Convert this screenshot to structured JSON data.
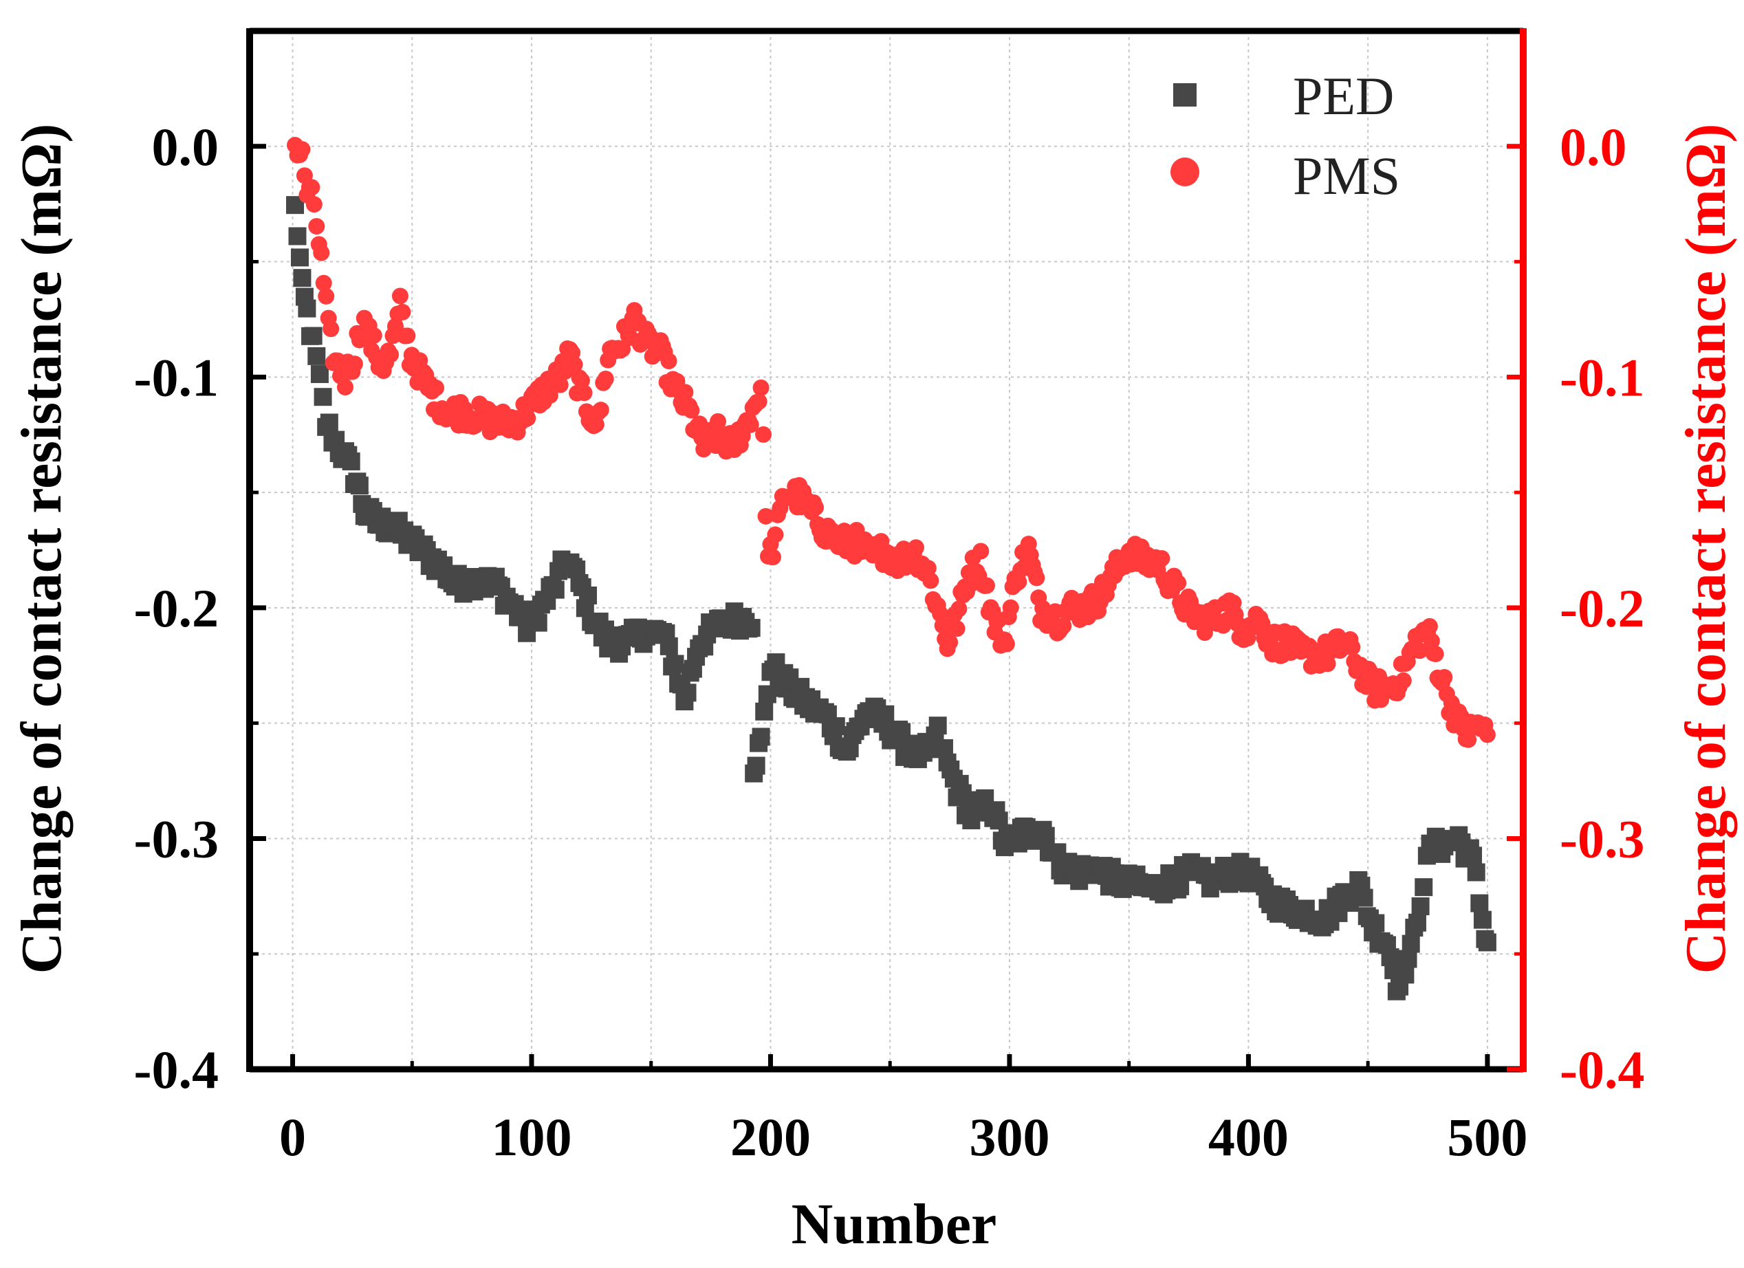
{
  "chart_data": {
    "type": "scatter",
    "title": "",
    "xlabel": "Number",
    "ylabel_left": "Change of contact resistance (mΩ)",
    "ylabel_right": "Change of contact resistance (mΩ)",
    "xlim": [
      -18,
      515
    ],
    "ylim": [
      -0.4,
      0.05
    ],
    "x_ticks": [
      0,
      100,
      200,
      300,
      400,
      500
    ],
    "y_ticks": [
      0.0,
      -0.1,
      -0.2,
      -0.3,
      -0.4
    ],
    "x_tick_labels": [
      "0",
      "100",
      "200",
      "300",
      "400",
      "500"
    ],
    "y_tick_labels": [
      "0.0",
      "-0.1",
      "-0.2",
      "-0.3",
      "-0.4"
    ],
    "grid": true,
    "legend_position": "top-right",
    "colors": {
      "PED": "#474747",
      "PMS": "#ff3b3b",
      "right_axis": "#ff0000",
      "left_axis": "#000000"
    },
    "series": [
      {
        "name": "PED",
        "marker": "square",
        "anchors": [
          [
            1,
            -0.027
          ],
          [
            2,
            -0.037
          ],
          [
            4,
            -0.062
          ],
          [
            6,
            -0.072
          ],
          [
            10,
            -0.093
          ],
          [
            14,
            -0.12
          ],
          [
            18,
            -0.128
          ],
          [
            22,
            -0.135
          ],
          [
            27,
            -0.145
          ],
          [
            30,
            -0.158
          ],
          [
            35,
            -0.163
          ],
          [
            42,
            -0.165
          ],
          [
            48,
            -0.17
          ],
          [
            55,
            -0.176
          ],
          [
            62,
            -0.182
          ],
          [
            68,
            -0.19
          ],
          [
            76,
            -0.188
          ],
          [
            85,
            -0.19
          ],
          [
            93,
            -0.2
          ],
          [
            98,
            -0.208
          ],
          [
            104,
            -0.2
          ],
          [
            110,
            -0.19
          ],
          [
            115,
            -0.178
          ],
          [
            120,
            -0.19
          ],
          [
            126,
            -0.205
          ],
          [
            132,
            -0.215
          ],
          [
            140,
            -0.215
          ],
          [
            148,
            -0.21
          ],
          [
            155,
            -0.212
          ],
          [
            160,
            -0.225
          ],
          [
            164,
            -0.24
          ],
          [
            170,
            -0.215
          ],
          [
            178,
            -0.208
          ],
          [
            186,
            -0.205
          ],
          [
            192,
            -0.205
          ],
          [
            193,
            -0.268
          ],
          [
            196,
            -0.258
          ],
          [
            200,
            -0.225
          ],
          [
            208,
            -0.235
          ],
          [
            216,
            -0.242
          ],
          [
            224,
            -0.248
          ],
          [
            232,
            -0.262
          ],
          [
            240,
            -0.245
          ],
          [
            248,
            -0.25
          ],
          [
            256,
            -0.26
          ],
          [
            264,
            -0.265
          ],
          [
            270,
            -0.255
          ],
          [
            274,
            -0.268
          ],
          [
            278,
            -0.278
          ],
          [
            284,
            -0.29
          ],
          [
            292,
            -0.285
          ],
          [
            298,
            -0.302
          ],
          [
            306,
            -0.298
          ],
          [
            314,
            -0.296
          ],
          [
            320,
            -0.31
          ],
          [
            328,
            -0.315
          ],
          [
            336,
            -0.312
          ],
          [
            344,
            -0.318
          ],
          [
            352,
            -0.32
          ],
          [
            360,
            -0.322
          ],
          [
            368,
            -0.318
          ],
          [
            376,
            -0.315
          ],
          [
            384,
            -0.318
          ],
          [
            392,
            -0.315
          ],
          [
            400,
            -0.315
          ],
          [
            408,
            -0.325
          ],
          [
            416,
            -0.33
          ],
          [
            424,
            -0.332
          ],
          [
            432,
            -0.335
          ],
          [
            440,
            -0.325
          ],
          [
            446,
            -0.32
          ],
          [
            452,
            -0.338
          ],
          [
            458,
            -0.345
          ],
          [
            462,
            -0.362
          ],
          [
            468,
            -0.35
          ],
          [
            472,
            -0.325
          ],
          [
            476,
            -0.305
          ],
          [
            482,
            -0.302
          ],
          [
            488,
            -0.3
          ],
          [
            494,
            -0.31
          ],
          [
            498,
            -0.335
          ],
          [
            500,
            -0.345
          ]
        ]
      },
      {
        "name": "PMS",
        "marker": "circle",
        "anchors": [
          [
            1,
            0.0
          ],
          [
            4,
            -0.005
          ],
          [
            6,
            -0.02
          ],
          [
            9,
            -0.025
          ],
          [
            12,
            -0.05
          ],
          [
            15,
            -0.08
          ],
          [
            18,
            -0.094
          ],
          [
            22,
            -0.1
          ],
          [
            26,
            -0.09
          ],
          [
            29,
            -0.075
          ],
          [
            33,
            -0.085
          ],
          [
            37,
            -0.095
          ],
          [
            41,
            -0.09
          ],
          [
            45,
            -0.07
          ],
          [
            49,
            -0.09
          ],
          [
            54,
            -0.1
          ],
          [
            60,
            -0.11
          ],
          [
            66,
            -0.115
          ],
          [
            72,
            -0.115
          ],
          [
            80,
            -0.118
          ],
          [
            88,
            -0.12
          ],
          [
            95,
            -0.118
          ],
          [
            100,
            -0.112
          ],
          [
            106,
            -0.105
          ],
          [
            112,
            -0.1
          ],
          [
            116,
            -0.09
          ],
          [
            120,
            -0.105
          ],
          [
            124,
            -0.115
          ],
          [
            128,
            -0.12
          ],
          [
            132,
            -0.09
          ],
          [
            138,
            -0.085
          ],
          [
            143,
            -0.075
          ],
          [
            148,
            -0.085
          ],
          [
            154,
            -0.09
          ],
          [
            160,
            -0.105
          ],
          [
            166,
            -0.115
          ],
          [
            172,
            -0.13
          ],
          [
            178,
            -0.125
          ],
          [
            184,
            -0.13
          ],
          [
            190,
            -0.12
          ],
          [
            196,
            -0.105
          ],
          [
            199,
            -0.18
          ],
          [
            202,
            -0.17
          ],
          [
            206,
            -0.15
          ],
          [
            212,
            -0.152
          ],
          [
            218,
            -0.16
          ],
          [
            224,
            -0.168
          ],
          [
            230,
            -0.172
          ],
          [
            236,
            -0.172
          ],
          [
            242,
            -0.178
          ],
          [
            248,
            -0.175
          ],
          [
            254,
            -0.18
          ],
          [
            260,
            -0.175
          ],
          [
            266,
            -0.185
          ],
          [
            270,
            -0.2
          ],
          [
            274,
            -0.215
          ],
          [
            278,
            -0.205
          ],
          [
            283,
            -0.185
          ],
          [
            288,
            -0.18
          ],
          [
            293,
            -0.205
          ],
          [
            298,
            -0.215
          ],
          [
            303,
            -0.185
          ],
          [
            308,
            -0.175
          ],
          [
            313,
            -0.2
          ],
          [
            320,
            -0.205
          ],
          [
            326,
            -0.2
          ],
          [
            332,
            -0.2
          ],
          [
            338,
            -0.195
          ],
          [
            344,
            -0.185
          ],
          [
            350,
            -0.175
          ],
          [
            356,
            -0.18
          ],
          [
            362,
            -0.18
          ],
          [
            368,
            -0.19
          ],
          [
            374,
            -0.2
          ],
          [
            380,
            -0.205
          ],
          [
            386,
            -0.205
          ],
          [
            392,
            -0.2
          ],
          [
            398,
            -0.21
          ],
          [
            404,
            -0.205
          ],
          [
            410,
            -0.215
          ],
          [
            416,
            -0.215
          ],
          [
            422,
            -0.22
          ],
          [
            428,
            -0.22
          ],
          [
            434,
            -0.22
          ],
          [
            440,
            -0.215
          ],
          [
            446,
            -0.225
          ],
          [
            452,
            -0.235
          ],
          [
            458,
            -0.235
          ],
          [
            464,
            -0.23
          ],
          [
            470,
            -0.215
          ],
          [
            475,
            -0.21
          ],
          [
            480,
            -0.228
          ],
          [
            484,
            -0.24
          ],
          [
            488,
            -0.25
          ],
          [
            492,
            -0.255
          ],
          [
            496,
            -0.25
          ],
          [
            500,
            -0.255
          ]
        ]
      }
    ]
  }
}
